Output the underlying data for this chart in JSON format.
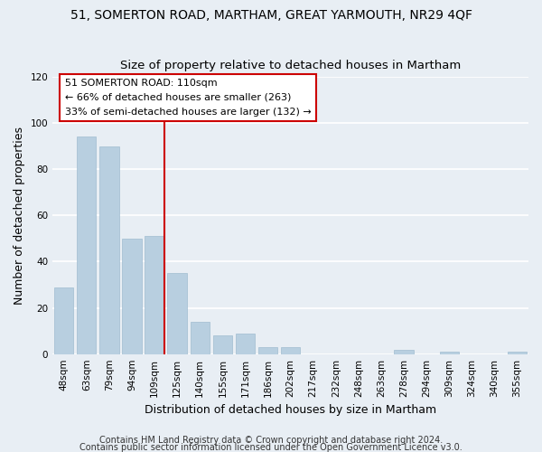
{
  "title_line1": "51, SOMERTON ROAD, MARTHAM, GREAT YARMOUTH, NR29 4QF",
  "title_line2": "Size of property relative to detached houses in Martham",
  "xlabel": "Distribution of detached houses by size in Martham",
  "ylabel": "Number of detached properties",
  "categories": [
    "48sqm",
    "63sqm",
    "79sqm",
    "94sqm",
    "109sqm",
    "125sqm",
    "140sqm",
    "155sqm",
    "171sqm",
    "186sqm",
    "202sqm",
    "217sqm",
    "232sqm",
    "248sqm",
    "263sqm",
    "278sqm",
    "294sqm",
    "309sqm",
    "324sqm",
    "340sqm",
    "355sqm"
  ],
  "values": [
    29,
    94,
    90,
    50,
    51,
    35,
    14,
    8,
    9,
    3,
    3,
    0,
    0,
    0,
    0,
    2,
    0,
    1,
    0,
    0,
    1
  ],
  "bar_color": "#b8cfe0",
  "bar_edge_color": "#a0bcd0",
  "highlight_index": 4,
  "highlight_line_color": "#cc0000",
  "annotation_line1": "51 SOMERTON ROAD: 110sqm",
  "annotation_line2": "← 66% of detached houses are smaller (263)",
  "annotation_line3": "33% of semi-detached houses are larger (132) →",
  "annotation_box_color": "#ffffff",
  "annotation_box_edge_color": "#cc0000",
  "ylim": [
    0,
    120
  ],
  "yticks": [
    0,
    20,
    40,
    60,
    80,
    100,
    120
  ],
  "footer_line1": "Contains HM Land Registry data © Crown copyright and database right 2024.",
  "footer_line2": "Contains public sector information licensed under the Open Government Licence v3.0.",
  "background_color": "#e8eef4",
  "grid_color": "#ffffff",
  "title_fontsize": 10,
  "subtitle_fontsize": 9.5,
  "axis_label_fontsize": 9,
  "tick_fontsize": 7.5,
  "annotation_fontsize": 8,
  "footer_fontsize": 7
}
